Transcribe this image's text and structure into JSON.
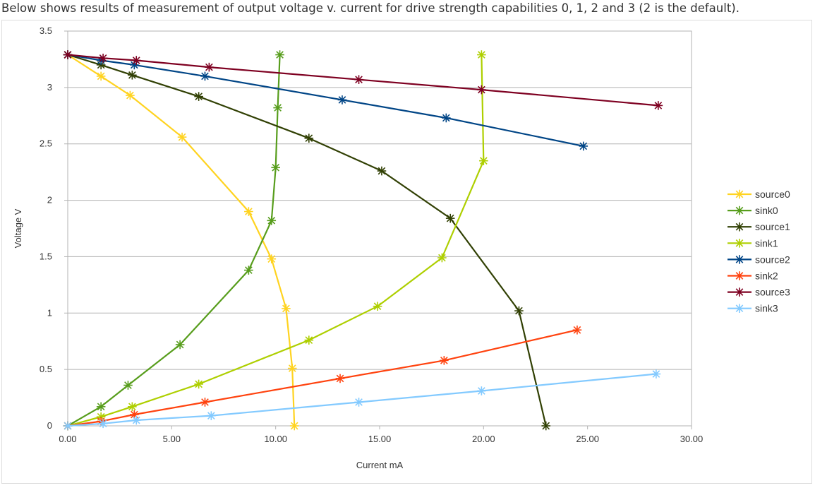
{
  "caption": "Below shows results of measurement of output voltage v. current for drive strength capabilities 0, 1, 2 and 3 (2 is the default).",
  "chart_data": {
    "type": "scatter",
    "mode": "lines+markers",
    "title": "",
    "xlabel": "Current mA",
    "ylabel": "Voltage V",
    "xlim": [
      0,
      30
    ],
    "ylim": [
      0,
      3.5
    ],
    "xticks": [
      0,
      5,
      10,
      15,
      20,
      25,
      30
    ],
    "xtick_labels": [
      "0.00",
      "5.00",
      "10.00",
      "15.00",
      "20.00",
      "25.00",
      "30.00"
    ],
    "yticks": [
      0,
      0.5,
      1,
      1.5,
      2,
      2.5,
      3,
      3.5
    ],
    "ytick_labels": [
      "0",
      "0.5",
      "1",
      "1.5",
      "2",
      "2.5",
      "3",
      "3.5"
    ],
    "grid": "horizontal",
    "legend_position": "right",
    "series": [
      {
        "name": "source0",
        "color": "#ffd320",
        "x": [
          0,
          1.6,
          3.0,
          5.5,
          8.7,
          9.8,
          10.5,
          10.8,
          10.9
        ],
        "y": [
          3.29,
          3.1,
          2.93,
          2.56,
          1.9,
          1.48,
          1.04,
          0.51,
          0
        ]
      },
      {
        "name": "sink0",
        "color": "#579d1c",
        "x": [
          0,
          1.6,
          2.9,
          5.4,
          8.7,
          9.8,
          10.0,
          10.1,
          10.2
        ],
        "y": [
          0,
          0.17,
          0.36,
          0.72,
          1.38,
          1.82,
          2.29,
          2.82,
          3.29
        ]
      },
      {
        "name": "source1",
        "color": "#314004",
        "x": [
          0,
          1.6,
          3.1,
          6.3,
          11.6,
          15.1,
          18.4,
          21.7,
          23.0
        ],
        "y": [
          3.29,
          3.2,
          3.11,
          2.92,
          2.55,
          2.26,
          1.84,
          1.02,
          0
        ]
      },
      {
        "name": "sink1",
        "color": "#aecf00",
        "x": [
          0,
          1.6,
          3.1,
          6.3,
          11.6,
          14.9,
          18.0,
          20.0,
          19.9
        ],
        "y": [
          0,
          0.08,
          0.17,
          0.37,
          0.76,
          1.06,
          1.49,
          2.35,
          3.29
        ]
      },
      {
        "name": "source2",
        "color": "#004586",
        "x": [
          0,
          1.6,
          3.2,
          6.6,
          13.2,
          18.2,
          24.8
        ],
        "y": [
          3.29,
          3.24,
          3.2,
          3.1,
          2.89,
          2.73,
          2.48
        ]
      },
      {
        "name": "sink2",
        "color": "#ff420e",
        "x": [
          0,
          1.6,
          3.2,
          6.6,
          13.1,
          18.1,
          24.5
        ],
        "y": [
          0,
          0.04,
          0.1,
          0.21,
          0.42,
          0.58,
          0.85
        ]
      },
      {
        "name": "source3",
        "color": "#7e0021",
        "x": [
          0,
          1.7,
          3.3,
          6.8,
          14.0,
          19.9,
          28.4
        ],
        "y": [
          3.29,
          3.26,
          3.24,
          3.18,
          3.07,
          2.98,
          2.84
        ]
      },
      {
        "name": "sink3",
        "color": "#83caff",
        "x": [
          0,
          1.7,
          3.3,
          6.9,
          14.0,
          19.9,
          28.3
        ],
        "y": [
          0,
          0.02,
          0.05,
          0.09,
          0.21,
          0.31,
          0.46
        ]
      }
    ]
  }
}
